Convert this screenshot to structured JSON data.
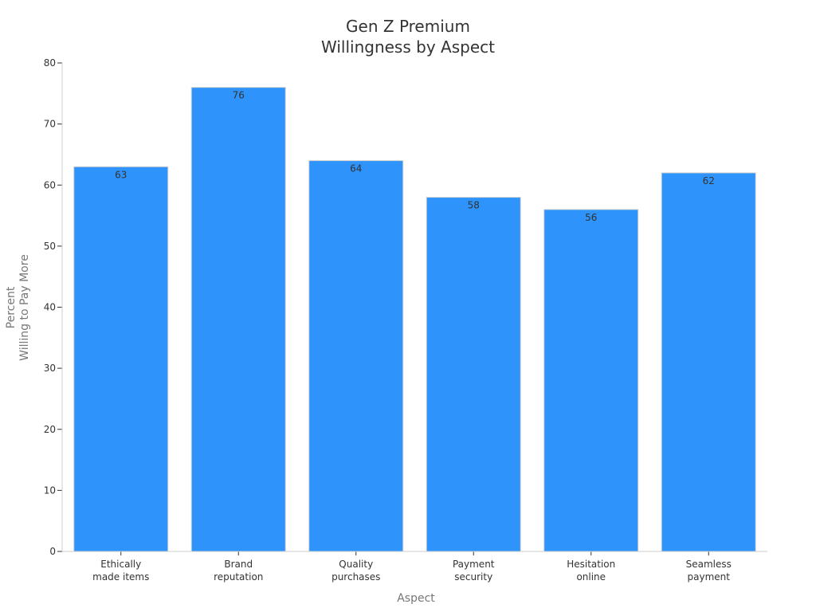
{
  "chart_data": {
    "type": "bar",
    "title_lines": [
      "Gen Z Premium",
      "Willingness by Aspect"
    ],
    "xlabel": "Aspect",
    "ylabel_lines": [
      "Percent",
      "Willing to Pay More"
    ],
    "categories": [
      [
        "Ethically",
        "made items"
      ],
      [
        "Brand",
        "reputation"
      ],
      [
        "Quality",
        "purchases"
      ],
      [
        "Payment",
        "security"
      ],
      [
        "Hesitation",
        "online"
      ],
      [
        "Seamless",
        "payment"
      ]
    ],
    "values": [
      63,
      76,
      64,
      58,
      56,
      62
    ],
    "ylim": [
      0,
      80
    ],
    "yticks": [
      0,
      10,
      20,
      30,
      40,
      50,
      60,
      70,
      80
    ],
    "bar_color": "#2e93fa",
    "grid": false,
    "legend": "none"
  }
}
